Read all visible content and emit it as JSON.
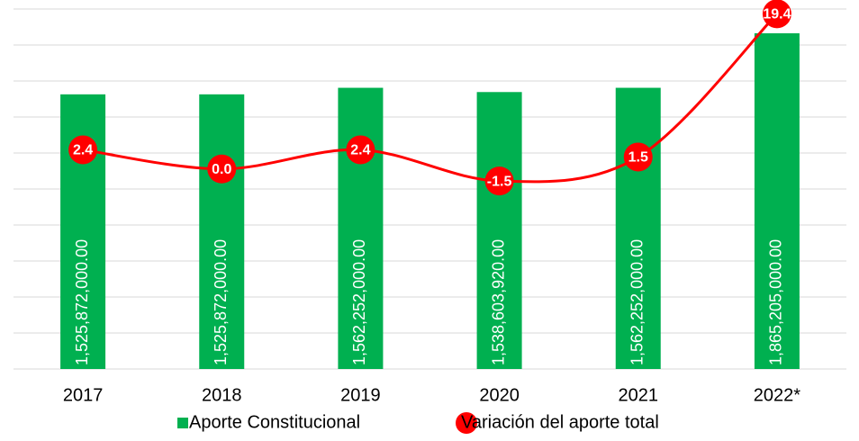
{
  "chart_data": {
    "type": "bar_line",
    "categories": [
      "2017",
      "2018",
      "2019",
      "2020",
      "2021",
      "2022*"
    ],
    "series": [
      {
        "name": "Aporte Constitucional",
        "type": "bar",
        "color": "#00b050",
        "values": [
          1525872000,
          1525872000,
          1562252000,
          1538603920,
          1562252000,
          1865205000
        ],
        "value_labels": [
          "1,525,872,000.00",
          "1,525,872,000.00",
          "1,562,252,000.00",
          "1,538,603,920.00",
          "1,562,252,000.00",
          "1,865,205,000.00"
        ]
      },
      {
        "name": "Variación del aporte total",
        "type": "line",
        "axis": "y2",
        "color": "#ff0000",
        "values": [
          2.4,
          0.0,
          2.4,
          -1.5,
          1.5,
          19.4
        ],
        "value_labels": [
          "2.4",
          "0.0",
          "2.4",
          "-1.5",
          "1.5",
          "19.4"
        ]
      }
    ],
    "ylim": [
      0,
      2000000000
    ],
    "yticks": [
      0,
      200000000,
      400000000,
      600000000,
      800000000,
      1000000000,
      1200000000,
      1400000000,
      1600000000,
      1800000000,
      2000000000
    ],
    "y2lim": [
      -25,
      20
    ],
    "grid": true,
    "legend": "bottom"
  }
}
